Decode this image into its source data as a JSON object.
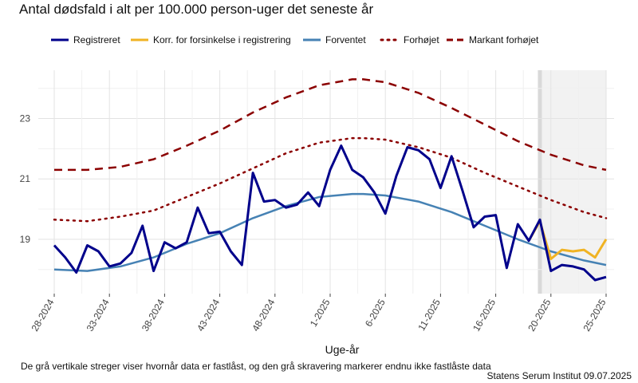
{
  "chart_data": {
    "type": "line",
    "title": "Antal dødsfald i alt per 100.000 person-uger det seneste år",
    "xlabel": "Uge-år",
    "ylabel": "",
    "ylim": [
      17.2,
      24.6
    ],
    "yticks": [
      19,
      21,
      23
    ],
    "grid": true,
    "legend_position": "top",
    "x_ticks": [
      "28-2024",
      "33-2024",
      "38-2024",
      "43-2024",
      "48-2024",
      "1-2025",
      "6-2025",
      "11-2025",
      "16-2025",
      "20-2025",
      "25-2025"
    ],
    "x_tick_index": [
      0,
      5,
      10,
      15,
      20,
      25,
      30,
      35,
      40,
      45,
      50
    ],
    "shaded_region": {
      "from_index": 44,
      "to_index": 50,
      "label": "ikke fastlåste data"
    },
    "series": [
      {
        "name": "Registreret",
        "color": "#00008B",
        "style": "solid",
        "x_index": [
          0,
          1,
          2,
          3,
          4,
          5,
          6,
          7,
          8,
          9,
          10,
          11,
          12,
          13,
          14,
          15,
          16,
          17,
          18,
          19,
          20,
          21,
          22,
          23,
          24,
          25,
          26,
          27,
          28,
          29,
          30,
          31,
          32,
          33,
          34,
          35,
          36,
          37,
          38,
          39,
          40,
          41,
          42,
          43,
          44,
          45,
          46,
          47,
          48,
          49,
          50
        ],
        "values": [
          18.8,
          18.4,
          17.9,
          18.8,
          18.6,
          18.1,
          18.2,
          18.55,
          19.45,
          17.95,
          18.9,
          18.7,
          18.9,
          20.05,
          19.2,
          19.25,
          18.6,
          18.15,
          21.2,
          20.25,
          20.3,
          20.05,
          20.15,
          20.55,
          20.1,
          21.3,
          22.1,
          21.3,
          21.05,
          20.55,
          19.85,
          21.1,
          22.05,
          21.95,
          21.65,
          20.7,
          21.75,
          20.6,
          19.4,
          19.75,
          19.8,
          18.05,
          19.5,
          18.95,
          19.65,
          17.95,
          18.15,
          18.1,
          18.0,
          17.65,
          17.75
        ]
      },
      {
        "name": "Korr. for forsinkelse i registrering",
        "color": "#F0B323",
        "style": "solid",
        "x_index": [
          43,
          44,
          45,
          46,
          47,
          48,
          49,
          50
        ],
        "values": [
          18.95,
          19.6,
          18.35,
          18.65,
          18.6,
          18.65,
          18.4,
          19.0
        ]
      },
      {
        "name": "Forventet",
        "color": "#4682B4",
        "style": "solid",
        "x_index": [
          0,
          3,
          6,
          9,
          12,
          15,
          18,
          21,
          24,
          27,
          28,
          30,
          33,
          36,
          39,
          42,
          45,
          48,
          50
        ],
        "values": [
          18.0,
          17.95,
          18.1,
          18.4,
          18.85,
          19.2,
          19.7,
          20.1,
          20.4,
          20.5,
          20.5,
          20.45,
          20.25,
          19.9,
          19.45,
          19.0,
          18.6,
          18.3,
          18.15
        ]
      },
      {
        "name": "Forhøjet",
        "color": "#8B0000",
        "style": "dotted",
        "x_index": [
          0,
          3,
          6,
          9,
          12,
          15,
          18,
          21,
          24,
          27,
          28,
          30,
          33,
          36,
          39,
          42,
          45,
          48,
          50
        ],
        "values": [
          19.65,
          19.6,
          19.75,
          19.95,
          20.4,
          20.85,
          21.35,
          21.85,
          22.2,
          22.35,
          22.35,
          22.3,
          22.05,
          21.7,
          21.2,
          20.75,
          20.3,
          19.9,
          19.7
        ]
      },
      {
        "name": "Markant forhøjet",
        "color": "#8B0000",
        "style": "dashed",
        "x_index": [
          0,
          3,
          6,
          9,
          12,
          15,
          18,
          21,
          24,
          27,
          28,
          30,
          33,
          36,
          39,
          42,
          45,
          48,
          50
        ],
        "values": [
          21.3,
          21.3,
          21.4,
          21.65,
          22.1,
          22.6,
          23.2,
          23.7,
          24.1,
          24.3,
          24.3,
          24.2,
          23.85,
          23.35,
          22.8,
          22.25,
          21.8,
          21.45,
          21.3
        ]
      }
    ]
  },
  "footnote": "De grå vertikale streger viser hvornår data er fastlåst, og den grå skravering markerer endnu ikke fastlåste data",
  "source": "Statens Serum Institut  09.07.2025"
}
